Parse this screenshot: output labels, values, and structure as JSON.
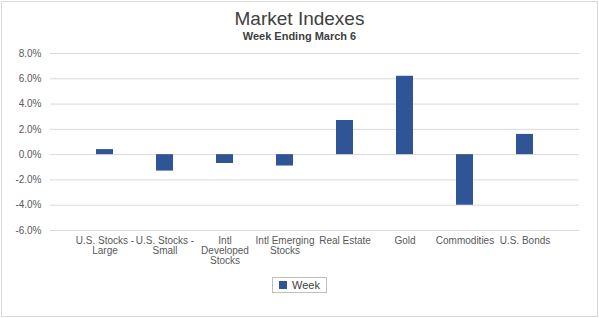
{
  "chart_data": {
    "type": "bar",
    "title": "Market Indexes",
    "subtitle": "Week Ending March 6",
    "categories": [
      "U.S. Stocks - Large",
      "U.S. Stocks - Small",
      "Intl Developed Stocks",
      "Intl Emerging Stocks",
      "Real Estate",
      "Gold",
      "Commodities",
      "U.S. Bonds"
    ],
    "series": [
      {
        "name": "Week",
        "color": "#2f5597",
        "values": [
          0.4,
          -1.3,
          -0.7,
          -0.9,
          2.7,
          6.2,
          -4.0,
          1.6
        ]
      }
    ],
    "ylim": [
      -6,
      8
    ],
    "yticks": [
      {
        "value": -6,
        "label": "-6.0%"
      },
      {
        "value": -4,
        "label": "-4.0%"
      },
      {
        "value": -2,
        "label": "-2.0%"
      },
      {
        "value": 0,
        "label": "0.0%"
      },
      {
        "value": 2,
        "label": "2.0%"
      },
      {
        "value": 4,
        "label": "4.0%"
      },
      {
        "value": 6,
        "label": "6.0%"
      },
      {
        "value": 8,
        "label": "8.0%"
      }
    ],
    "grid": true,
    "legend": "bottom"
  }
}
